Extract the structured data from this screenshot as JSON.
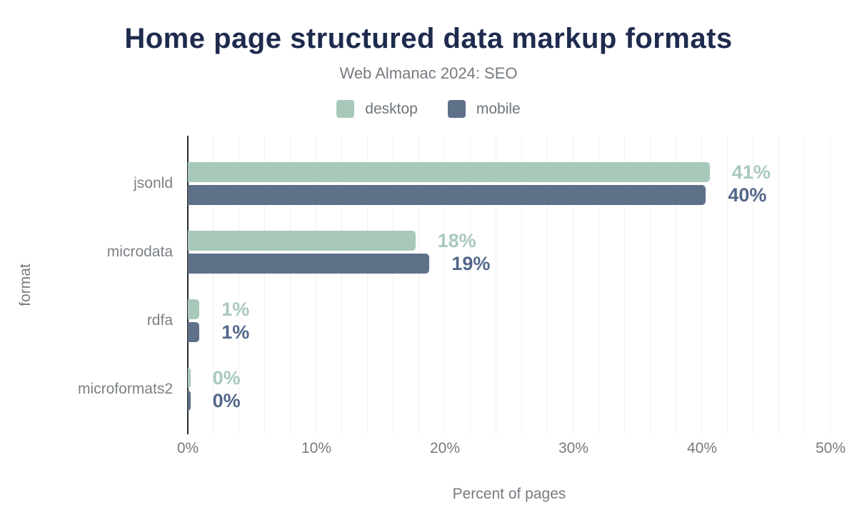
{
  "title": "Home page structured data markup formats",
  "subtitle": "Web Almanac 2024: SEO",
  "colors": {
    "title": "#1e2b4e",
    "desktop": "#a8c9ba",
    "mobile": "#5f7189",
    "mobile_value_text": "#53678a",
    "grid": "#edf0f1",
    "axis_line": "#26292d",
    "muted_text": "#767b80"
  },
  "chart_data": {
    "type": "bar",
    "orientation": "horizontal",
    "title": "Home page structured data markup formats",
    "subtitle": "Web Almanac 2024: SEO",
    "categories": [
      "jsonld",
      "microdata",
      "rdfa",
      "microformats2"
    ],
    "series": [
      {
        "name": "desktop",
        "color": "#a8c9ba",
        "label_color": "#a8c9ba",
        "values": [
          40.6,
          17.7,
          0.9,
          0.2
        ],
        "labels": [
          "41%",
          "18%",
          "1%",
          "0%"
        ]
      },
      {
        "name": "mobile",
        "color": "#5f7189",
        "label_color": "#53678a",
        "values": [
          40.3,
          18.8,
          0.9,
          0.2
        ],
        "labels": [
          "40%",
          "19%",
          "1%",
          "0%"
        ]
      }
    ],
    "xlabel": "Percent of pages",
    "ylabel": "format",
    "xlim": [
      0,
      50
    ],
    "x_ticks": [
      {
        "value": 0,
        "label": "0%"
      },
      {
        "value": 10,
        "label": "10%"
      },
      {
        "value": 20,
        "label": "20%"
      },
      {
        "value": 30,
        "label": "30%"
      },
      {
        "value": 40,
        "label": "40%"
      },
      {
        "value": 50,
        "label": "50%"
      },
      {
        "value": 0,
        "label": ""
      }
    ],
    "minor_grid_step": 2,
    "grid": true,
    "legend_position": "top"
  }
}
